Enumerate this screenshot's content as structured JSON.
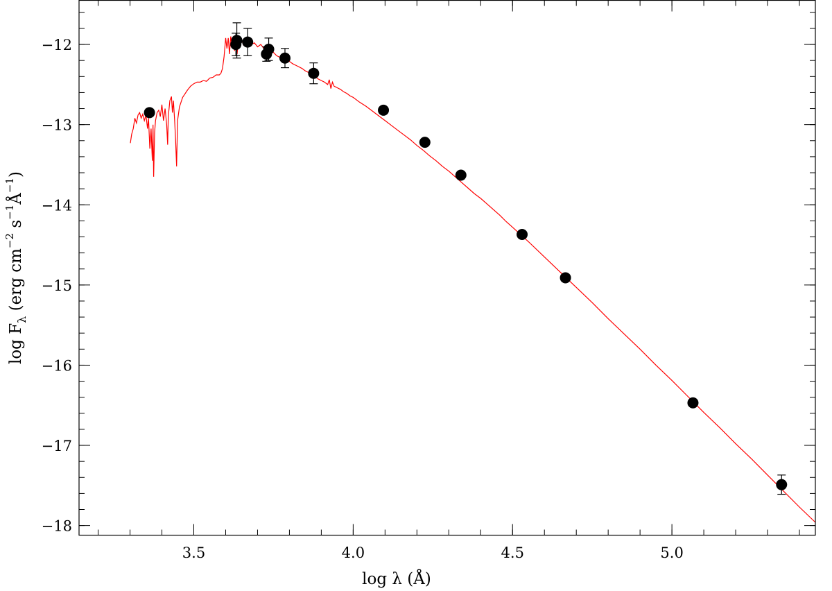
{
  "chart_data": {
    "type": "scatter",
    "xlabel_parts": {
      "prefix": "log ",
      "symbol": "λ",
      "unit": "(Å)"
    },
    "ylabel_parts": {
      "prefix": "log F",
      "sub": "λ",
      "unit_open": "(erg cm",
      "exp1": "−2",
      "s": "s",
      "exp2": "−1",
      "ang": "Å",
      "exp3": "−1",
      "close": ")"
    },
    "xlim": [
      3.14,
      5.45
    ],
    "ylim": [
      -18.12,
      -11.45
    ],
    "x_ticks": [
      {
        "value": 3.5,
        "label": "3.5"
      },
      {
        "value": 4.0,
        "label": "4.0"
      },
      {
        "value": 4.5,
        "label": "4.5"
      },
      {
        "value": 5.0,
        "label": "5.0"
      }
    ],
    "y_ticks": [
      {
        "value": -12,
        "label": "−12"
      },
      {
        "value": -13,
        "label": "−13"
      },
      {
        "value": -14,
        "label": "−14"
      },
      {
        "value": -15,
        "label": "−15"
      },
      {
        "value": -16,
        "label": "−16"
      },
      {
        "value": -17,
        "label": "−17"
      },
      {
        "value": -18,
        "label": "−18"
      }
    ],
    "x_minor_step": 0.1,
    "y_minor_step": 0.2,
    "colors": {
      "model": "#ff0000",
      "points": "#000000"
    },
    "model_spectrum": [
      [
        3.301,
        -13.23
      ],
      [
        3.305,
        -13.12
      ],
      [
        3.31,
        -13.05
      ],
      [
        3.315,
        -12.92
      ],
      [
        3.32,
        -12.98
      ],
      [
        3.325,
        -12.88
      ],
      [
        3.33,
        -12.85
      ],
      [
        3.335,
        -12.92
      ],
      [
        3.34,
        -12.87
      ],
      [
        3.345,
        -12.95
      ],
      [
        3.35,
        -12.88
      ],
      [
        3.355,
        -13.05
      ],
      [
        3.358,
        -12.92
      ],
      [
        3.362,
        -13.3
      ],
      [
        3.366,
        -13.05
      ],
      [
        3.37,
        -13.45
      ],
      [
        3.372,
        -13.0
      ],
      [
        3.374,
        -13.65
      ],
      [
        3.377,
        -13.1
      ],
      [
        3.38,
        -12.95
      ],
      [
        3.385,
        -12.85
      ],
      [
        3.39,
        -12.82
      ],
      [
        3.395,
        -12.9
      ],
      [
        3.4,
        -12.75
      ],
      [
        3.405,
        -12.95
      ],
      [
        3.41,
        -12.8
      ],
      [
        3.415,
        -13.0
      ],
      [
        3.418,
        -13.25
      ],
      [
        3.42,
        -12.9
      ],
      [
        3.425,
        -12.7
      ],
      [
        3.43,
        -12.65
      ],
      [
        3.433,
        -12.85
      ],
      [
        3.436,
        -12.7
      ],
      [
        3.44,
        -12.95
      ],
      [
        3.443,
        -13.2
      ],
      [
        3.446,
        -13.52
      ],
      [
        3.449,
        -12.95
      ],
      [
        3.455,
        -12.78
      ],
      [
        3.46,
        -12.72
      ],
      [
        3.465,
        -12.66
      ],
      [
        3.47,
        -12.63
      ],
      [
        3.48,
        -12.57
      ],
      [
        3.49,
        -12.52
      ],
      [
        3.5,
        -12.49
      ],
      [
        3.51,
        -12.47
      ],
      [
        3.52,
        -12.47
      ],
      [
        3.53,
        -12.45
      ],
      [
        3.54,
        -12.46
      ],
      [
        3.55,
        -12.42
      ],
      [
        3.56,
        -12.41
      ],
      [
        3.57,
        -12.38
      ],
      [
        3.58,
        -12.38
      ],
      [
        3.585,
        -12.36
      ],
      [
        3.59,
        -12.3
      ],
      [
        3.595,
        -12.15
      ],
      [
        3.6,
        -11.92
      ],
      [
        3.604,
        -12.05
      ],
      [
        3.608,
        -11.92
      ],
      [
        3.612,
        -12.12
      ],
      [
        3.616,
        -11.9
      ],
      [
        3.62,
        -12.02
      ],
      [
        3.624,
        -11.9
      ],
      [
        3.628,
        -12.08
      ],
      [
        3.632,
        -11.93
      ],
      [
        3.636,
        -12.12
      ],
      [
        3.64,
        -11.94
      ],
      [
        3.645,
        -12.02
      ],
      [
        3.65,
        -11.94
      ],
      [
        3.655,
        -12.0
      ],
      [
        3.66,
        -11.95
      ],
      [
        3.665,
        -12.02
      ],
      [
        3.67,
        -11.96
      ],
      [
        3.68,
        -12.0
      ],
      [
        3.69,
        -11.98
      ],
      [
        3.7,
        -12.03
      ],
      [
        3.71,
        -12.0
      ],
      [
        3.72,
        -12.05
      ],
      [
        3.73,
        -12.06
      ],
      [
        3.74,
        -12.09
      ],
      [
        3.75,
        -12.1
      ],
      [
        3.76,
        -12.14
      ],
      [
        3.77,
        -12.16
      ],
      [
        3.78,
        -12.18
      ],
      [
        3.79,
        -12.2
      ],
      [
        3.8,
        -12.21
      ],
      [
        3.81,
        -12.24
      ],
      [
        3.82,
        -12.26
      ],
      [
        3.83,
        -12.28
      ],
      [
        3.84,
        -12.3
      ],
      [
        3.85,
        -12.33
      ],
      [
        3.86,
        -12.35
      ],
      [
        3.87,
        -12.37
      ],
      [
        3.88,
        -12.4
      ],
      [
        3.89,
        -12.43
      ],
      [
        3.9,
        -12.45
      ],
      [
        3.91,
        -12.47
      ],
      [
        3.92,
        -12.5
      ],
      [
        3.925,
        -12.44
      ],
      [
        3.93,
        -12.55
      ],
      [
        3.935,
        -12.47
      ],
      [
        3.94,
        -12.52
      ],
      [
        3.95,
        -12.54
      ],
      [
        3.96,
        -12.56
      ],
      [
        3.97,
        -12.59
      ],
      [
        3.98,
        -12.61
      ],
      [
        3.99,
        -12.64
      ],
      [
        4.0,
        -12.66
      ],
      [
        4.02,
        -12.72
      ],
      [
        4.04,
        -12.77
      ],
      [
        4.06,
        -12.83
      ],
      [
        4.08,
        -12.89
      ],
      [
        4.1,
        -12.95
      ],
      [
        4.12,
        -13.01
      ],
      [
        4.14,
        -13.07
      ],
      [
        4.16,
        -13.13
      ],
      [
        4.18,
        -13.19
      ],
      [
        4.2,
        -13.26
      ],
      [
        4.22,
        -13.32
      ],
      [
        4.24,
        -13.39
      ],
      [
        4.26,
        -13.45
      ],
      [
        4.28,
        -13.52
      ],
      [
        4.3,
        -13.58
      ],
      [
        4.32,
        -13.65
      ],
      [
        4.34,
        -13.72
      ],
      [
        4.36,
        -13.79
      ],
      [
        4.38,
        -13.86
      ],
      [
        4.4,
        -13.92
      ],
      [
        4.42,
        -13.99
      ],
      [
        4.44,
        -14.06
      ],
      [
        4.46,
        -14.13
      ],
      [
        4.48,
        -14.21
      ],
      [
        4.5,
        -14.28
      ],
      [
        4.55,
        -14.46
      ],
      [
        4.6,
        -14.65
      ],
      [
        4.65,
        -14.84
      ],
      [
        4.7,
        -15.03
      ],
      [
        4.75,
        -15.22
      ],
      [
        4.8,
        -15.42
      ],
      [
        4.85,
        -15.61
      ],
      [
        4.9,
        -15.8
      ],
      [
        4.95,
        -16.0
      ],
      [
        5.0,
        -16.19
      ],
      [
        5.05,
        -16.39
      ],
      [
        5.1,
        -16.59
      ],
      [
        5.15,
        -16.78
      ],
      [
        5.2,
        -16.98
      ],
      [
        5.25,
        -17.17
      ],
      [
        5.3,
        -17.37
      ],
      [
        5.35,
        -17.57
      ],
      [
        5.4,
        -17.77
      ],
      [
        5.45,
        -17.96
      ]
    ],
    "points": [
      {
        "x": 3.361,
        "y": -12.85
      },
      {
        "x": 3.632,
        "y": -12.0,
        "err": 0.14
      },
      {
        "x": 3.635,
        "y": -11.95,
        "err": 0.22
      },
      {
        "x": 3.669,
        "y": -11.97,
        "err": 0.17
      },
      {
        "x": 3.728,
        "y": -12.12,
        "err": 0.09
      },
      {
        "x": 3.735,
        "y": -12.06,
        "err": 0.14
      },
      {
        "x": 3.786,
        "y": -12.17,
        "err": 0.12
      },
      {
        "x": 3.876,
        "y": -12.36,
        "err": 0.13
      },
      {
        "x": 4.095,
        "y": -12.82
      },
      {
        "x": 4.225,
        "y": -13.22
      },
      {
        "x": 4.338,
        "y": -13.63
      },
      {
        "x": 4.53,
        "y": -14.37
      },
      {
        "x": 4.666,
        "y": -14.91
      },
      {
        "x": 5.066,
        "y": -16.47
      },
      {
        "x": 5.344,
        "y": -17.49,
        "err": 0.12
      }
    ]
  }
}
